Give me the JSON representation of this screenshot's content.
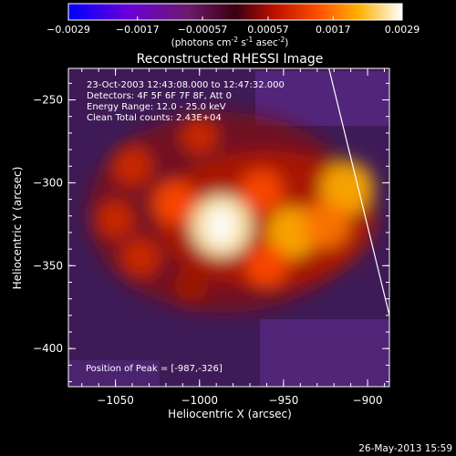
{
  "colorbar": {
    "ticks": [
      "-0.0029",
      "-0.0017",
      "-0.00057",
      "0.00057",
      "0.0017",
      "0.0029"
    ],
    "units_prefix": "(photons cm",
    "units_exp1": "-2",
    "units_mid": " s",
    "units_exp2": "-1",
    "units_mid2": " asec",
    "units_exp3": "-2",
    "units_suffix": ")"
  },
  "chart_data": {
    "type": "heatmap",
    "title": "Reconstructed RHESSI Image",
    "xlabel": "Heliocentric X (arcsec)",
    "ylabel": "Heliocentric Y (arcsec)",
    "xlim": [
      -1078,
      -887
    ],
    "ylim": [
      -423,
      -231
    ],
    "x_ticks": [
      {
        "value": -1050,
        "label": "−1050"
      },
      {
        "value": -1000,
        "label": "−1000"
      },
      {
        "value": -950,
        "label": "−950"
      },
      {
        "value": -900,
        "label": "−900"
      }
    ],
    "y_ticks": [
      {
        "value": -250,
        "label": "−250"
      },
      {
        "value": -300,
        "label": "−300"
      },
      {
        "value": -350,
        "label": "−350"
      },
      {
        "value": -400,
        "label": "−400"
      }
    ],
    "colorscale_range": [
      -0.0029,
      0.0029
    ],
    "colormap": "blue-purple-red-yellow-white",
    "sources": [
      {
        "x": -987,
        "y": -326,
        "value": 0.0029
      },
      {
        "x": -1015,
        "y": -312,
        "value": 0.0016
      },
      {
        "x": -963,
        "y": -305,
        "value": 0.0015
      },
      {
        "x": -945,
        "y": -330,
        "value": 0.0021
      },
      {
        "x": -912,
        "y": -303,
        "value": 0.0023
      },
      {
        "x": -925,
        "y": -325,
        "value": 0.0019
      },
      {
        "x": -1040,
        "y": -290,
        "value": 0.0014
      },
      {
        "x": -1035,
        "y": -345,
        "value": 0.0013
      },
      {
        "x": -1000,
        "y": -272,
        "value": 0.0011
      },
      {
        "x": -960,
        "y": -350,
        "value": 0.0015
      },
      {
        "x": -1050,
        "y": -322,
        "value": 0.0012
      },
      {
        "x": -1005,
        "y": -362,
        "value": 0.0009
      }
    ],
    "limb_line": [
      [
        -923,
        -231
      ],
      [
        -887,
        -380
      ]
    ],
    "annotations": [
      "23-Oct-2003 12:43:08.000 to 12:47:32.000",
      "Detectors: 4F 5F 6F 7F 8F, Att 0",
      "Energy Range: 12.0 - 25.0 keV",
      "Clean     Total counts: 2.43E+04"
    ],
    "peak_label": "Position of Peak = [-987,-326]",
    "peak": [
      -987,
      -326
    ]
  },
  "footer_date": "26-May-2013 15:59",
  "colors": {
    "background": "#000000",
    "text": "#ffffff",
    "limb": "#ffffff"
  }
}
